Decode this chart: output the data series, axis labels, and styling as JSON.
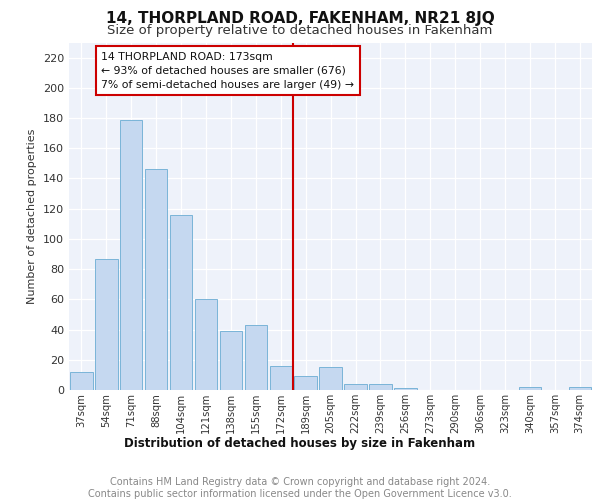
{
  "title": "14, THORPLAND ROAD, FAKENHAM, NR21 8JQ",
  "subtitle": "Size of property relative to detached houses in Fakenham",
  "xlabel_bottom": "Distribution of detached houses by size in Fakenham",
  "ylabel": "Number of detached properties",
  "categories": [
    "37sqm",
    "54sqm",
    "71sqm",
    "88sqm",
    "104sqm",
    "121sqm",
    "138sqm",
    "155sqm",
    "172sqm",
    "189sqm",
    "205sqm",
    "222sqm",
    "239sqm",
    "256sqm",
    "273sqm",
    "290sqm",
    "306sqm",
    "323sqm",
    "340sqm",
    "357sqm",
    "374sqm"
  ],
  "values": [
    12,
    87,
    179,
    146,
    116,
    60,
    39,
    43,
    16,
    9,
    15,
    4,
    4,
    1,
    0,
    0,
    0,
    0,
    2,
    0,
    2
  ],
  "bar_color": "#c5d8f0",
  "bar_edge_color": "#7ab4d8",
  "vline_x_index": 8,
  "annotation_title": "14 THORPLAND ROAD: 173sqm",
  "annotation_line1": "← 93% of detached houses are smaller (676)",
  "annotation_line2": "7% of semi-detached houses are larger (49) →",
  "annotation_box_color": "#cc0000",
  "ylim": [
    0,
    230
  ],
  "yticks": [
    0,
    20,
    40,
    60,
    80,
    100,
    120,
    140,
    160,
    180,
    200,
    220
  ],
  "footer": "Contains HM Land Registry data © Crown copyright and database right 2024.\nContains public sector information licensed under the Open Government Licence v3.0.",
  "title_fontsize": 11,
  "subtitle_fontsize": 9.5,
  "footer_fontsize": 7,
  "background_color": "#eef2fa"
}
